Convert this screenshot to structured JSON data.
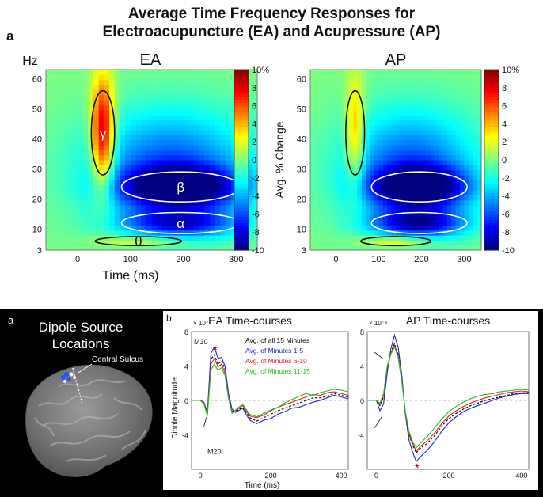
{
  "figure": {
    "title_line1": "Average Time Frequency Responses for",
    "title_line2": "Electroacupuncture (EA) and Acupressure (AP)",
    "panel_a_top": "a",
    "panel_a_bottom": "a",
    "panel_b_bottom": "b"
  },
  "dipole_panel": {
    "title_line1": "Dipole Source",
    "title_line2": "Locations",
    "central_sulcus_label": "Central Sulcus",
    "background_color": "#000000"
  },
  "chart_data": [
    {
      "type": "heatmap",
      "title": "EA",
      "xlabel": "Time (ms)",
      "ylabel": "Hz",
      "xlim": [
        -60,
        340
      ],
      "ylim": [
        3,
        63
      ],
      "x_ticks": [
        0,
        100,
        200,
        300
      ],
      "y_ticks": [
        3,
        10,
        20,
        30,
        40,
        50,
        60
      ],
      "colorbar": {
        "label": "Avg. % Change",
        "range": [
          -10,
          10
        ],
        "ticks": [
          10,
          8,
          6,
          4,
          2,
          0,
          -2,
          -4,
          -6,
          -8,
          -10
        ],
        "top_label": "10%",
        "colormap": "jet"
      },
      "regions": [
        {
          "label": "γ",
          "time_center": 48,
          "freq_center": 42,
          "time_halfwidth": 22,
          "freq_halfwidth": 14,
          "value": 10
        },
        {
          "label": "β",
          "time_center": 195,
          "freq_center": 24,
          "time_halfwidth": 112,
          "freq_halfwidth": 5,
          "value": -9
        },
        {
          "label": "α",
          "time_center": 195,
          "freq_center": 12,
          "time_halfwidth": 112,
          "freq_halfwidth": 3.5,
          "value": -6
        },
        {
          "label": "θ",
          "time_center": 115,
          "freq_center": 6,
          "time_halfwidth": 82,
          "freq_halfwidth": 1.5,
          "value": 3
        }
      ]
    },
    {
      "type": "heatmap",
      "title": "AP",
      "xlabel": "",
      "ylabel": "",
      "xlim": [
        -60,
        340
      ],
      "ylim": [
        3,
        63
      ],
      "x_ticks": [
        0,
        100,
        200,
        300
      ],
      "y_ticks": [
        3,
        10,
        20,
        30,
        40,
        50,
        60
      ],
      "colorbar": {
        "label": "",
        "range": [
          -10,
          10
        ],
        "ticks": [
          10,
          8,
          6,
          4,
          2,
          0,
          -2,
          -4,
          -6,
          -8,
          -10
        ],
        "top_label": "10%",
        "colormap": "jet"
      },
      "regions": [
        {
          "label": "",
          "time_center": 45,
          "freq_center": 42,
          "time_halfwidth": 22,
          "freq_halfwidth": 14,
          "value": 5
        },
        {
          "label": "",
          "time_center": 195,
          "freq_center": 24,
          "time_halfwidth": 112,
          "freq_halfwidth": 5,
          "value": -9
        },
        {
          "label": "",
          "time_center": 195,
          "freq_center": 12,
          "time_halfwidth": 112,
          "freq_halfwidth": 3.5,
          "value": -7
        },
        {
          "label": "",
          "time_center": 140,
          "freq_center": 6,
          "time_halfwidth": 82,
          "freq_halfwidth": 1.5,
          "value": 4
        }
      ]
    },
    {
      "type": "line",
      "title": "EA Time-courses",
      "xlabel": "Time (ms)",
      "ylabel": "Dipole Magnitude",
      "y_exponent": "× 10⁻⁹",
      "xlim": [
        -25,
        420
      ],
      "ylim": [
        -8,
        8
      ],
      "x_ticks": [
        0,
        200,
        400
      ],
      "y_ticks": [
        8,
        4,
        0,
        -4
      ],
      "annotations": [
        "M30",
        "M20"
      ],
      "legend_placement": "top-right",
      "series": [
        {
          "name": "Avg. of all 15 Minutes",
          "color": "#000000",
          "x": [
            -20,
            0,
            10,
            20,
            30,
            40,
            50,
            60,
            70,
            80,
            90,
            100,
            120,
            140,
            160,
            180,
            200,
            220,
            240,
            260,
            280,
            300,
            320,
            340,
            360,
            380,
            400,
            420
          ],
          "y": [
            0,
            0,
            -0.3,
            -1.6,
            4.8,
            5.3,
            4.2,
            4.6,
            3.6,
            0.6,
            -1.2,
            -1.3,
            -0.8,
            -2.0,
            -2.4,
            -2.0,
            -1.6,
            -1.2,
            -0.9,
            -0.6,
            -0.3,
            0,
            0.3,
            0.3,
            0.5,
            0.8,
            0.6,
            0.4
          ]
        },
        {
          "name": "Avg. of Minutes 1-5",
          "color": "#2020e0",
          "x": [
            -20,
            0,
            10,
            20,
            30,
            40,
            50,
            60,
            70,
            80,
            90,
            100,
            120,
            140,
            160,
            180,
            200,
            220,
            240,
            260,
            280,
            300,
            320,
            340,
            360,
            380,
            400,
            420
          ],
          "y": [
            0,
            0,
            -0.2,
            -1.4,
            5.5,
            6.2,
            4.9,
            5.0,
            4.0,
            0.8,
            -1.0,
            -1.4,
            -0.9,
            -2.3,
            -2.7,
            -2.3,
            -2.1,
            -1.6,
            -1.3,
            -0.9,
            -0.8,
            -0.5,
            -0.2,
            0,
            0.3,
            0.6,
            0.4,
            0.2
          ]
        },
        {
          "name": "Avg. of Minutes 6-10",
          "color": "#e02020",
          "x": [
            -20,
            0,
            10,
            20,
            30,
            40,
            50,
            60,
            70,
            80,
            90,
            100,
            120,
            140,
            160,
            180,
            200,
            220,
            240,
            260,
            280,
            300,
            320,
            340,
            360,
            380,
            400,
            420
          ],
          "y": [
            0,
            0,
            -0.3,
            -1.7,
            4.2,
            4.9,
            3.9,
            4.2,
            3.2,
            0.4,
            -1.3,
            -1.2,
            -0.6,
            -1.8,
            -2.0,
            -1.7,
            -1.2,
            -0.8,
            -0.5,
            -0.2,
            0.1,
            0.4,
            0.7,
            0.6,
            0.9,
            1.0,
            0.8,
            0.6
          ]
        },
        {
          "name": "Avg. of Minutes 11-15",
          "color": "#20c020",
          "x": [
            -20,
            0,
            10,
            20,
            30,
            40,
            50,
            60,
            70,
            80,
            90,
            100,
            120,
            140,
            160,
            180,
            200,
            220,
            240,
            260,
            280,
            300,
            320,
            340,
            360,
            380,
            400,
            420
          ],
          "y": [
            0,
            0,
            -0.4,
            -1.8,
            3.6,
            4.2,
            3.5,
            3.8,
            2.9,
            0.2,
            -1.5,
            -1.1,
            -0.4,
            -1.6,
            -1.9,
            -1.5,
            -1.1,
            -0.8,
            -0.3,
            0.1,
            0.5,
            0.8,
            0.6,
            0.9,
            1.1,
            1.3,
            1.2,
            1.0
          ]
        }
      ]
    },
    {
      "type": "line",
      "title": "AP Time-courses",
      "xlabel": "",
      "ylabel": "",
      "y_exponent": "× 10⁻⁹",
      "xlim": [
        -25,
        420
      ],
      "ylim": [
        -8,
        8
      ],
      "x_ticks": [
        0,
        200,
        400
      ],
      "y_ticks": [
        8,
        4,
        0,
        -4
      ],
      "series": [
        {
          "name": "Avg. of all 15 Minutes",
          "color": "#000000",
          "x": [
            -20,
            0,
            10,
            20,
            30,
            40,
            50,
            60,
            70,
            80,
            90,
            100,
            110,
            120,
            140,
            160,
            180,
            200,
            220,
            240,
            260,
            280,
            300,
            320,
            340,
            360,
            380,
            400,
            420
          ],
          "y": [
            0,
            0,
            -0.6,
            0.4,
            3.6,
            5.6,
            6.6,
            5.4,
            2.6,
            -1.5,
            -4.0,
            -5.2,
            -6.1,
            -5.6,
            -5.0,
            -4.1,
            -3.0,
            -2.1,
            -1.5,
            -1.0,
            -0.6,
            -0.3,
            0,
            0.2,
            0.4,
            0.6,
            0.8,
            0.9,
            0.9
          ]
        },
        {
          "name": "Avg. of Minutes 1-5",
          "color": "#2020e0",
          "x": [
            -20,
            0,
            10,
            20,
            30,
            40,
            50,
            60,
            70,
            80,
            90,
            100,
            110,
            120,
            140,
            160,
            180,
            200,
            220,
            240,
            260,
            280,
            300,
            320,
            340,
            360,
            380,
            400,
            420
          ],
          "y": [
            0,
            0,
            -1.2,
            -0.4,
            3.2,
            6.0,
            7.6,
            6.2,
            3.0,
            -1.6,
            -4.6,
            -6.0,
            -7.1,
            -6.6,
            -5.8,
            -4.8,
            -3.6,
            -2.6,
            -1.9,
            -1.3,
            -0.9,
            -0.6,
            -0.3,
            0,
            0.3,
            0.5,
            0.7,
            0.8,
            0.8
          ]
        },
        {
          "name": "Avg. of Minutes 6-10",
          "color": "#e02020",
          "x": [
            -20,
            0,
            10,
            20,
            30,
            40,
            50,
            60,
            70,
            80,
            90,
            100,
            110,
            120,
            140,
            160,
            180,
            200,
            220,
            240,
            260,
            280,
            300,
            320,
            340,
            360,
            380,
            400,
            420
          ],
          "y": [
            0,
            0,
            -0.5,
            0.6,
            3.8,
            5.5,
            6.4,
            5.2,
            2.4,
            -1.4,
            -3.8,
            -5.0,
            -5.9,
            -5.4,
            -4.7,
            -3.8,
            -2.7,
            -1.8,
            -1.2,
            -0.7,
            -0.3,
            0,
            0.3,
            0.5,
            0.7,
            0.9,
            1.0,
            1.1,
            1.0
          ]
        },
        {
          "name": "Avg. of Minutes 11-15",
          "color": "#20c020",
          "x": [
            -20,
            0,
            10,
            20,
            30,
            40,
            50,
            60,
            70,
            80,
            90,
            100,
            110,
            120,
            140,
            160,
            180,
            200,
            220,
            240,
            260,
            280,
            300,
            320,
            340,
            360,
            380,
            400,
            420
          ],
          "y": [
            0,
            0,
            -0.3,
            0.8,
            4.0,
            5.4,
            6.2,
            5.0,
            2.2,
            -1.3,
            -3.6,
            -4.8,
            -5.5,
            -5.0,
            -4.2,
            -3.2,
            -2.2,
            -1.3,
            -0.7,
            -0.2,
            0.2,
            0.5,
            0.7,
            0.8,
            1.0,
            1.1,
            1.2,
            1.3,
            1.2
          ]
        }
      ]
    }
  ]
}
